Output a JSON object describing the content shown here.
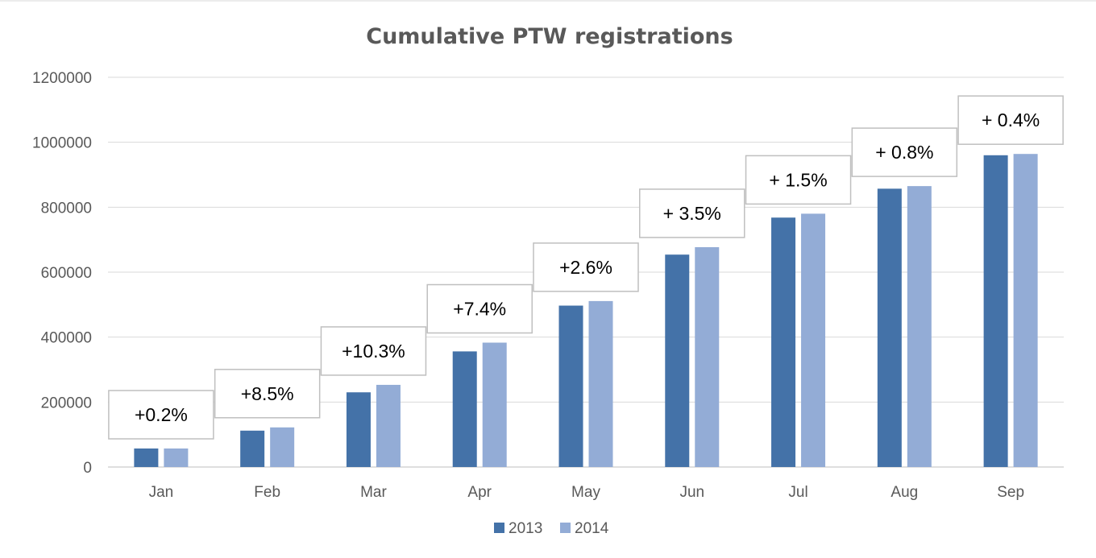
{
  "chart_data": {
    "type": "bar",
    "title": "Cumulative PTW registrations",
    "xlabel": "",
    "ylabel": "",
    "categories": [
      "Jan",
      "Feb",
      "Mar",
      "Apr",
      "May",
      "Jun",
      "Jul",
      "Aug",
      "Sep"
    ],
    "series": [
      {
        "name": "2013",
        "color": "#4472a8",
        "values": [
          57000,
          112000,
          230000,
          356000,
          497000,
          654000,
          768000,
          857000,
          960000
        ]
      },
      {
        "name": "2014",
        "color": "#93acd6",
        "values": [
          57000,
          122000,
          253000,
          383000,
          511000,
          677000,
          780000,
          865000,
          964000
        ]
      }
    ],
    "annotations": [
      "+0.2%",
      "+8.5%",
      "+10.3%",
      "+7.4%",
      "+2.6%",
      "+ 3.5%",
      "+ 1.5%",
      "+ 0.8%",
      "+ 0.4%"
    ],
    "ylim": [
      0,
      1200000
    ],
    "yticks": [
      0,
      200000,
      400000,
      600000,
      800000,
      1000000,
      1200000
    ],
    "grid": true,
    "legend": "bottom-center"
  }
}
